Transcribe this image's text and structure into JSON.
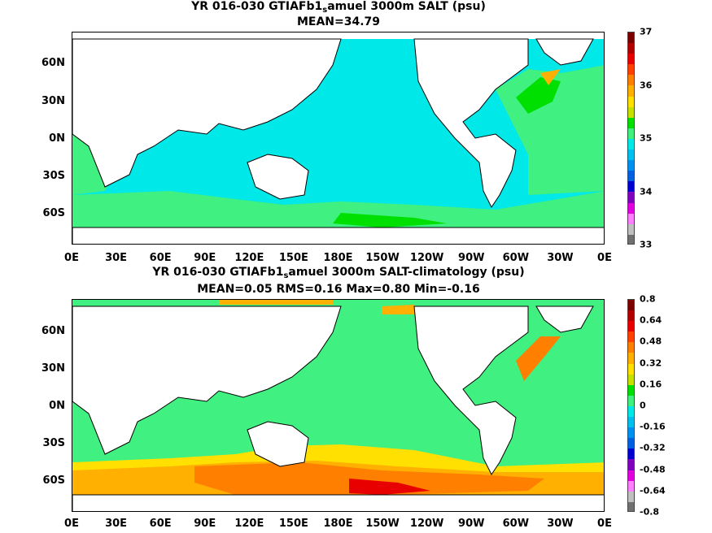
{
  "top": {
    "title_pre": "YR 016-030 GTIAFb1",
    "title_sub": "s",
    "title_post": "amuel 3000m SALT (psu)",
    "subtitle": "MEAN=34.79",
    "colorbar": {
      "labels": [
        "37",
        "36",
        "35",
        "34",
        "33"
      ],
      "colors": [
        "#7a0000",
        "#b00000",
        "#e80000",
        "#ff4000",
        "#ff8000",
        "#ffb000",
        "#ffe000",
        "#c8e000",
        "#00e000",
        "#40f080",
        "#00e8e8",
        "#00c0f0",
        "#0090f0",
        "#0060e0",
        "#0000d0",
        "#8000c0",
        "#e000e0",
        "#ff80ff",
        "#c0c0c0",
        "#707070"
      ]
    }
  },
  "bottom": {
    "title_pre": "YR 016-030 GTIAFb1",
    "title_sub": "s",
    "title_post": "amuel 3000m SALT-climatology (psu)",
    "subtitle": "MEAN=0.05   RMS=0.16   Max=0.80   Min=-0.16",
    "colorbar": {
      "labels": [
        "0.8",
        "0.64",
        "0.48",
        "0.32",
        "0.16",
        "0",
        "-0.16",
        "-0.32",
        "-0.48",
        "-0.64",
        "-0.8"
      ],
      "colors": [
        "#7a0000",
        "#b00000",
        "#e80000",
        "#ff4000",
        "#ff8000",
        "#ffb000",
        "#ffe000",
        "#c8e000",
        "#00e000",
        "#40f080",
        "#00e8e8",
        "#00c0f0",
        "#0090f0",
        "#0060e0",
        "#0000d0",
        "#8000c0",
        "#e000e0",
        "#ff80ff",
        "#c0c0c0",
        "#707070"
      ]
    }
  },
  "axes": {
    "lat_labels": [
      "60N",
      "30N",
      "0N",
      "30S",
      "60S"
    ],
    "lon_labels": [
      "0E",
      "30E",
      "60E",
      "90E",
      "120E",
      "150E",
      "180E",
      "150W",
      "120W",
      "90W",
      "60W",
      "30W",
      "0E"
    ]
  },
  "colors": {
    "land": "#ffffff",
    "top_ocean_main": "#00e8e8",
    "top_ocean_fringe": "#40f080",
    "top_ocean_high": "#00e000",
    "bottom_ocean_main": "#40f080",
    "bottom_ocean_warm": "#ffb000",
    "bottom_ocean_hot": "#ff4000",
    "coast": "#000000"
  }
}
